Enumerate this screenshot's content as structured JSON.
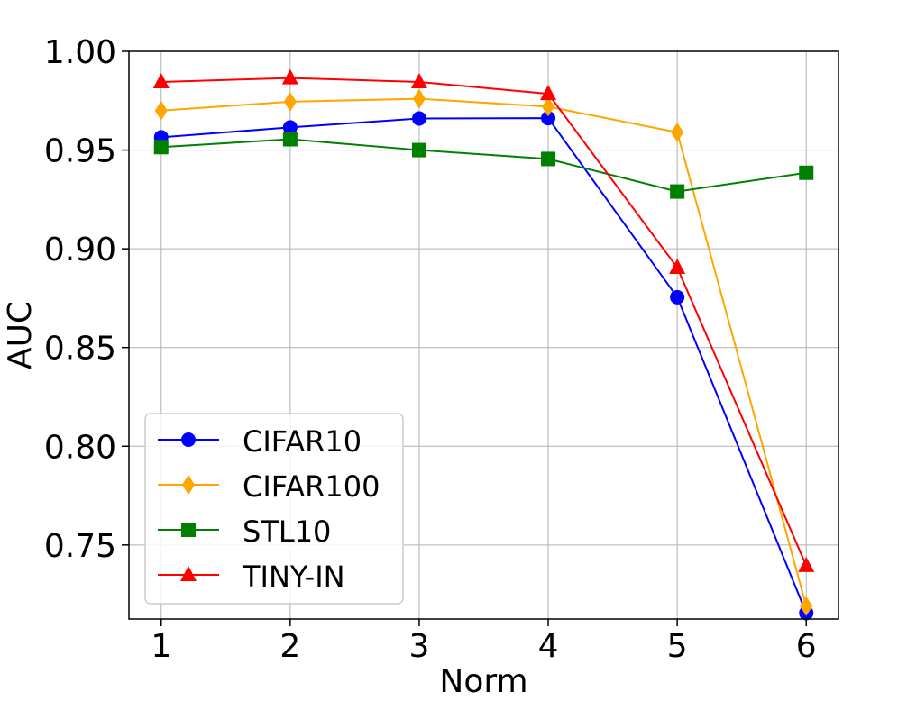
{
  "chart_data": {
    "type": "line",
    "title": "",
    "xlabel": "Norm",
    "ylabel": "AUC",
    "x": [
      1,
      2,
      3,
      4,
      5,
      6
    ],
    "xlim": [
      0.75,
      6.25
    ],
    "ylim": [
      0.7125,
      1.0
    ],
    "xticks": [
      "1",
      "2",
      "3",
      "4",
      "5",
      "6"
    ],
    "yticks": [
      "0.75",
      "0.80",
      "0.85",
      "0.90",
      "0.95",
      "1.00"
    ],
    "grid": true,
    "legend_position": "lower-left",
    "series": [
      {
        "name": "CIFAR10",
        "color": "#0000ff",
        "marker": "circle",
        "values": [
          0.9565,
          0.9615,
          0.966,
          0.9662,
          0.8755,
          0.7155
        ]
      },
      {
        "name": "CIFAR100",
        "color": "#ffa500",
        "marker": "diamond",
        "values": [
          0.97,
          0.9745,
          0.976,
          0.972,
          0.959,
          0.719
        ]
      },
      {
        "name": "STL10",
        "color": "#008000",
        "marker": "square",
        "values": [
          0.9515,
          0.9555,
          0.95,
          0.9455,
          0.929,
          0.9385
        ]
      },
      {
        "name": "TINY-IN",
        "color": "#ff0000",
        "marker": "triangle",
        "values": [
          0.9845,
          0.9865,
          0.9845,
          0.9785,
          0.8905,
          0.7395
        ]
      }
    ]
  }
}
